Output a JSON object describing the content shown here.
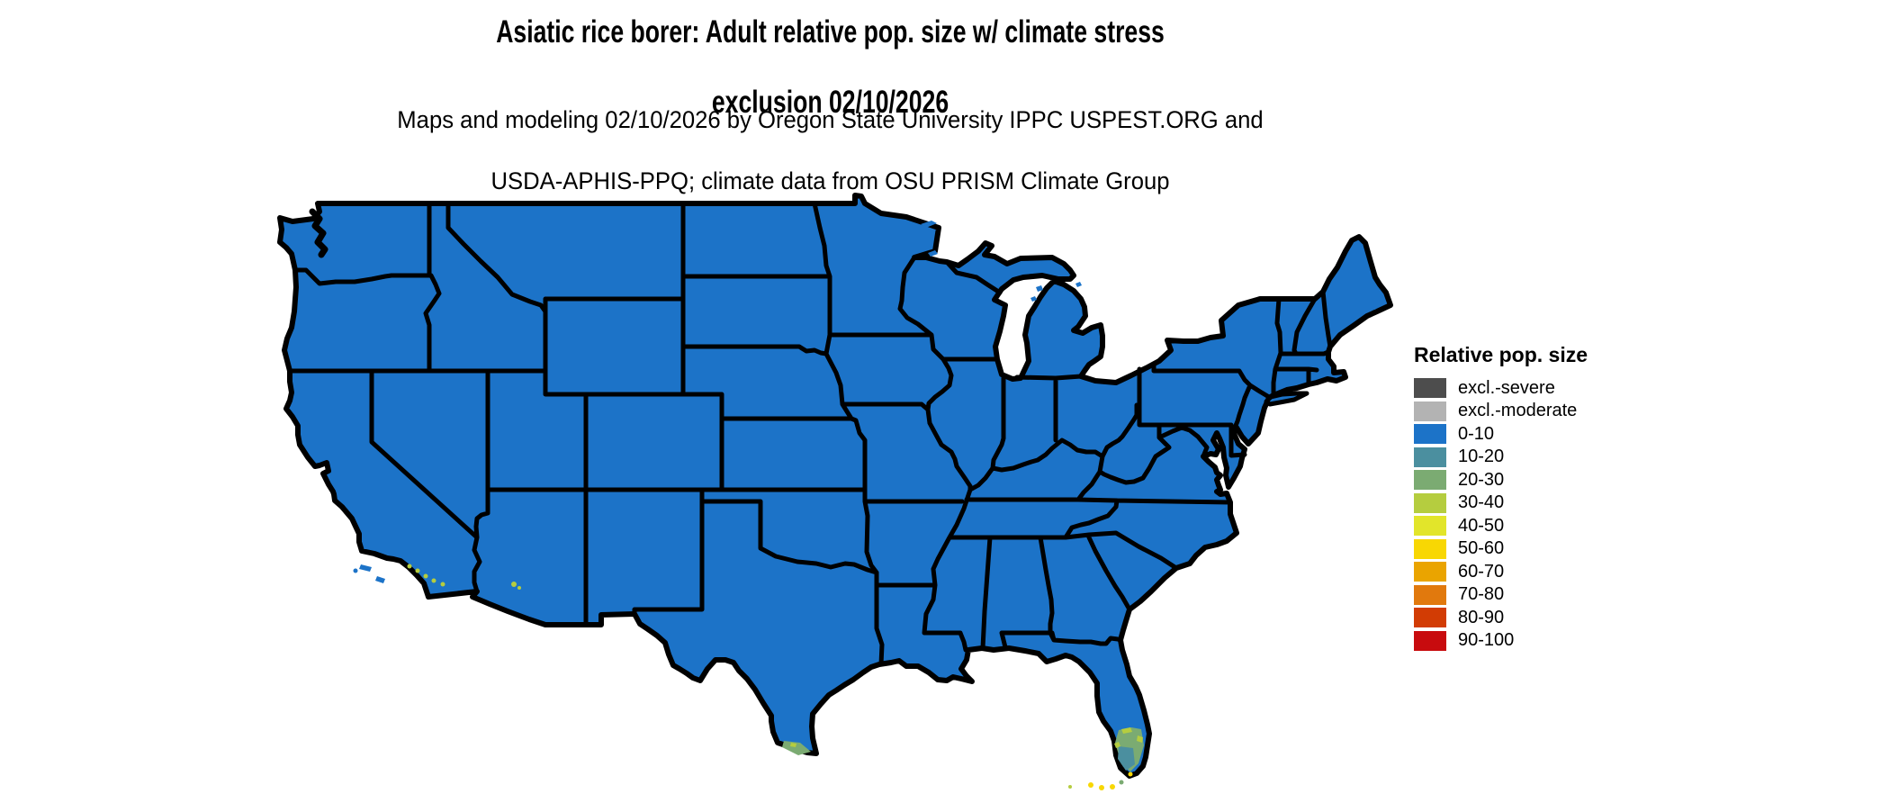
{
  "title": {
    "line1": "Asiatic rice borer: Adult relative pop. size w/ climate stress",
    "line2": "exclusion 02/10/2026"
  },
  "subtitle": {
    "line1": "Maps and modeling 02/10/2026 by Oregon State University IPPC USPEST.ORG and",
    "line2": "USDA-APHIS-PPQ; climate data from OSU PRISM Climate Group"
  },
  "legend": {
    "title": "Relative pop. size",
    "items": [
      {
        "label": "excl.-severe",
        "color": "#4d4d4d"
      },
      {
        "label": "excl.-moderate",
        "color": "#b3b3b3"
      },
      {
        "label": "0-10",
        "color": "#1c73c8"
      },
      {
        "label": "10-20",
        "color": "#4b8f9f"
      },
      {
        "label": "20-30",
        "color": "#7bab72"
      },
      {
        "label": "30-40",
        "color": "#b5cd3f"
      },
      {
        "label": "40-50",
        "color": "#e2e52a"
      },
      {
        "label": "50-60",
        "color": "#f8d703"
      },
      {
        "label": "60-70",
        "color": "#eaa400"
      },
      {
        "label": "70-80",
        "color": "#e1790d"
      },
      {
        "label": "80-90",
        "color": "#d23c04"
      },
      {
        "label": "90-100",
        "color": "#c80b0e"
      }
    ]
  },
  "map": {
    "name": "Contiguous United States",
    "border_color": "#000000",
    "background_color": "#ffffff",
    "base_category": "0-10",
    "hotspots": [
      {
        "region": "South Florida and Florida Keys",
        "categories": [
          "10-20",
          "20-30",
          "30-40",
          "50-60"
        ]
      },
      {
        "region": "South Texas (Rio Grande Valley)",
        "categories": [
          "20-30",
          "30-40"
        ]
      },
      {
        "region": "Southern California coast",
        "categories": [
          "30-40"
        ]
      },
      {
        "region": "Central Arizona",
        "categories": [
          "30-40"
        ]
      }
    ]
  }
}
